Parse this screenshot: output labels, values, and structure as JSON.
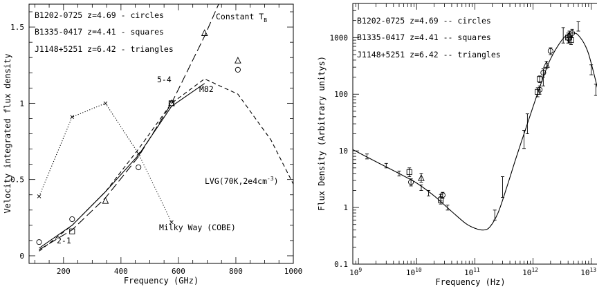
{
  "chart_data": [
    {
      "type": "line",
      "xlabel": "Frequency (GHz)",
      "ylabel": "Velocity integrated flux density",
      "xlim": [
        80,
        1000
      ],
      "ylim": [
        -0.05,
        1.65
      ],
      "x_ticks": [
        200,
        400,
        600,
        800,
        1000
      ],
      "y_ticks": [
        0,
        0.5,
        1,
        1.5
      ],
      "x_tick_labels": [
        "200",
        "400",
        "600",
        "800",
        "1000"
      ],
      "y_tick_labels": [
        "0",
        "0.5",
        "1",
        "1.5"
      ],
      "legend": [
        "B1202-0725 z=4.69 - circles",
        "B1335-0417 z=4.41 - squares",
        "J1148+5251 z=6.42 - triangles"
      ],
      "annotations": {
        "constant_tb": "Constant T",
        "constant_tb_sub": "B",
        "lvg": "LVG(70K,2e4cm",
        "lvg_sup": "-3",
        "lvg_close": ")",
        "m82": "M82",
        "milky_way": "Milky Way (COBE)",
        "transition_54": "5-4",
        "transition_21": "2-1"
      },
      "series": [
        {
          "marker": "circle",
          "x": [
            115,
            230,
            461,
            576,
            807
          ],
          "y": [
            0.09,
            0.24,
            0.58,
            1.0,
            1.22
          ]
        },
        {
          "marker": "square",
          "x": [
            230,
            576
          ],
          "y": [
            0.16,
            1.0
          ]
        },
        {
          "marker": "triangle",
          "x": [
            346,
            576,
            691,
            807
          ],
          "y": [
            0.36,
            1.0,
            1.46,
            1.28
          ]
        },
        {
          "style": "solid",
          "x": [
            115,
            230,
            346,
            461,
            576,
            691
          ],
          "y": [
            0.05,
            0.2,
            0.42,
            0.66,
            0.98,
            1.13
          ]
        },
        {
          "style": "short-dash",
          "x": [
            115,
            230,
            346,
            461,
            576,
            691,
            807,
            922,
            1000
          ],
          "y": [
            0.03,
            0.2,
            0.42,
            0.7,
            1.0,
            1.16,
            1.06,
            0.76,
            0.47
          ]
        },
        {
          "style": "long-dash",
          "x": [
            115,
            230,
            346,
            461,
            576,
            691,
            740
          ],
          "y": [
            0.04,
            0.17,
            0.38,
            0.65,
            1.0,
            1.44,
            1.65
          ]
        },
        {
          "style": "dotted",
          "marker": "cross",
          "x": [
            115,
            230,
            346,
            461,
            576
          ],
          "y": [
            0.39,
            0.91,
            1.0,
            0.67,
            0.22
          ]
        }
      ]
    },
    {
      "type": "scatter",
      "xlabel": "Frequency (Hz)",
      "ylabel": "Flux Density (Arbitrary unitys)",
      "xscale": "log",
      "yscale": "log",
      "xlim": [
        800000000.0,
        20000000000000.0
      ],
      "ylim": [
        0.1,
        4000
      ],
      "x_ticks": [
        1000000000.0,
        10000000000.0,
        100000000000.0,
        1000000000000.0,
        10000000000000.0
      ],
      "y_ticks": [
        0.1,
        1,
        10,
        100,
        1000
      ],
      "x_tick_labels": [
        [
          "10",
          "9"
        ],
        [
          "10",
          "10"
        ],
        [
          "10",
          "11"
        ],
        [
          "10",
          "12"
        ],
        [
          "10",
          "13"
        ]
      ],
      "y_tick_labels": [
        "0.1",
        "1",
        "10",
        "100",
        "1000"
      ],
      "legend": [
        "B1202-0725 z=4.69 -- circles",
        "B1335-0417 z=4.41 -- squares",
        "J1148+5251 z=6.42 -- triangles"
      ],
      "model_curve": {
        "x": [
          800000000.0,
          1500000000.0,
          3000000000.0,
          6000000000.0,
          10000000000.0,
          20000000000.0,
          40000000000.0,
          70000000000.0,
          100000000000.0,
          140000000000.0,
          180000000000.0,
          250000000000.0,
          350000000000.0,
          500000000000.0,
          700000000000.0,
          1000000000000.0,
          1500000000000.0,
          2000000000000.0,
          3000000000000.0,
          4000000000000.0,
          5000000000000.0,
          6000000000000.0,
          8000000000000.0,
          10000000000000.0,
          15000000000000.0,
          20000000000000.0
        ],
        "y": [
          10.5,
          7.5,
          5.2,
          3.6,
          2.7,
          1.6,
          0.85,
          0.52,
          0.43,
          0.4,
          0.45,
          0.8,
          2.2,
          7,
          20,
          60,
          200,
          420,
          850,
          1150,
          1200,
          1100,
          700,
          350,
          60,
          8
        ]
      },
      "error_points": [
        {
          "x": 1400000000.0,
          "y": 8,
          "lo": 7.2,
          "hi": 8.8
        },
        {
          "x": 3000000000.0,
          "y": 5.5,
          "lo": 5.0,
          "hi": 6.0
        },
        {
          "x": 5000000000.0,
          "y": 4.0,
          "lo": 3.6,
          "hi": 4.4
        },
        {
          "x": 12000000000.0,
          "y": 2.2,
          "lo": 2.0,
          "hi": 2.5
        },
        {
          "x": 16000000000.0,
          "y": 1.8,
          "lo": 1.6,
          "hi": 2.0
        },
        {
          "x": 26000000000.0,
          "y": 1.5,
          "lo": 1.3,
          "hi": 1.7
        },
        {
          "x": 34000000000.0,
          "y": 1.0,
          "lo": 0.9,
          "hi": 1.1
        },
        {
          "x": 220000000000.0,
          "y": 0.72,
          "lo": 0.6,
          "hi": 0.9
        },
        {
          "x": 300000000000.0,
          "y": 2.3,
          "lo": 1.5,
          "hi": 3.5
        },
        {
          "x": 700000000000.0,
          "y": 16,
          "lo": 11,
          "hi": 23
        },
        {
          "x": 800000000000.0,
          "y": 30,
          "lo": 20,
          "hi": 45
        },
        {
          "x": 1500000000000.0,
          "y": 200,
          "lo": 140,
          "hi": 280
        },
        {
          "x": 3300000000000.0,
          "y": 1100,
          "lo": 800,
          "hi": 1500
        },
        {
          "x": 6000000000000.0,
          "y": 1600,
          "lo": 1300,
          "hi": 1900
        },
        {
          "x": 10000000000000.0,
          "y": 270,
          "lo": 220,
          "hi": 330
        },
        {
          "x": 12000000000000.0,
          "y": 120,
          "lo": 95,
          "hi": 150
        }
      ],
      "series": [
        {
          "marker": "circle",
          "x": [
            8000000000.0,
            28000000000.0,
            1300000000000.0,
            1500000000000.0,
            2000000000000.0,
            4200000000000.0,
            4700000000000.0
          ],
          "y": [
            2.8,
            1.65,
            120,
            240,
            580,
            950,
            1200
          ],
          "lo": [
            2.4,
            1.45,
            100,
            200,
            500,
            800,
            1000
          ],
          "hi": [
            3.2,
            1.85,
            140,
            280,
            660,
            1100,
            1400
          ]
        },
        {
          "marker": "square",
          "x": [
            7500000000.0,
            26000000000.0,
            1200000000000.0,
            1300000000000.0,
            4000000000000.0,
            4500000000000.0
          ],
          "y": [
            4.2,
            1.35,
            110,
            185,
            1000,
            900
          ],
          "lo": [
            3.5,
            1.15,
            90,
            160,
            800,
            750
          ],
          "hi": [
            5.0,
            1.55,
            130,
            210,
            1200,
            1050
          ]
        },
        {
          "marker": "triangle",
          "x": [
            12000000000.0,
            1700000000000.0,
            4200000000000.0
          ],
          "y": [
            3.3,
            330,
            1100
          ],
          "lo": [
            2.8,
            280,
            900
          ],
          "hi": [
            4.0,
            380,
            1300
          ]
        }
      ]
    }
  ]
}
